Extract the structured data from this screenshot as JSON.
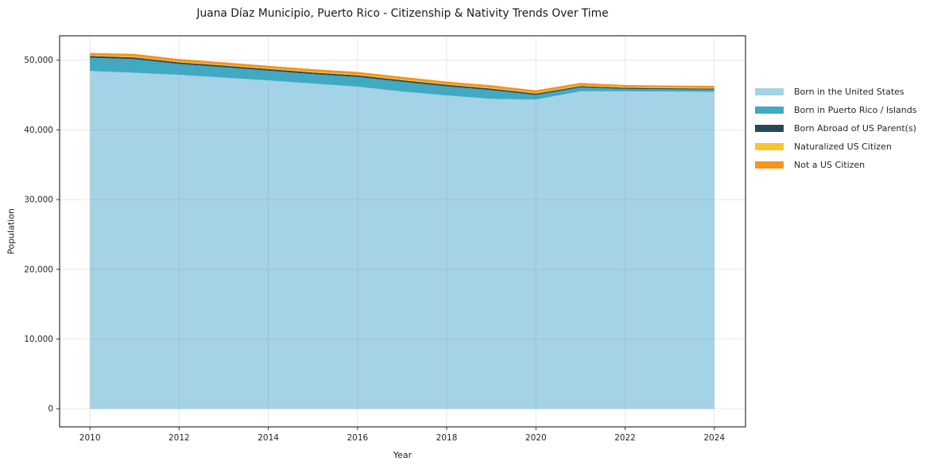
{
  "window": {
    "title": "Juana Díaz Municipio, Puerto Rico - Citizenship & Nativity Trends Over Time"
  },
  "chart_data": {
    "type": "area",
    "stacked": true,
    "title": "Juana Díaz Municipio, Puerto Rico - Citizenship & Nativity Trends Over Time",
    "xlabel": "Year",
    "ylabel": "Population",
    "x": [
      2010,
      2011,
      2012,
      2013,
      2014,
      2015,
      2016,
      2017,
      2018,
      2019,
      2020,
      2021,
      2022,
      2023,
      2024
    ],
    "series": [
      {
        "name": "Born in the United States",
        "color": "#a4d2e7",
        "values": [
          48450,
          48200,
          47900,
          47500,
          47100,
          46650,
          46200,
          45500,
          44950,
          44450,
          44350,
          45550,
          45530,
          45500,
          45450
        ]
      },
      {
        "name": "Born in Puerto Rico / Islands",
        "color": "#41a9c2",
        "values": [
          1900,
          1950,
          1550,
          1500,
          1400,
          1350,
          1400,
          1400,
          1300,
          1250,
          650,
          550,
          350,
          330,
          320
        ]
      },
      {
        "name": "Born Abroad of US Parent(s)",
        "color": "#27495a",
        "values": [
          250,
          240,
          230,
          230,
          230,
          230,
          230,
          230,
          220,
          220,
          200,
          180,
          160,
          150,
          150
        ]
      },
      {
        "name": "Naturalized US Citizen",
        "color": "#fcc22e",
        "values": [
          100,
          110,
          100,
          110,
          110,
          120,
          120,
          120,
          110,
          120,
          120,
          110,
          100,
          100,
          100
        ]
      },
      {
        "name": "Not a US Citizen",
        "color": "#f5941f",
        "values": [
          350,
          400,
          380,
          360,
          360,
          360,
          360,
          360,
          350,
          360,
          350,
          350,
          300,
          280,
          300
        ]
      }
    ],
    "x_ticks": [
      "2010",
      "2012",
      "2014",
      "2016",
      "2018",
      "2020",
      "2022",
      "2024"
    ],
    "x_tick_values": [
      2010,
      2012,
      2014,
      2016,
      2018,
      2020,
      2022,
      2024
    ],
    "y_ticks": [
      "0",
      "10,000",
      "20,000",
      "30,000",
      "40,000",
      "50,000"
    ],
    "y_tick_values": [
      0,
      10000,
      20000,
      30000,
      40000,
      50000
    ],
    "xlim": [
      2009.32,
      2024.7
    ],
    "ylim": [
      -2600,
      53500
    ],
    "grid": true,
    "legend_position": "right",
    "background_color": "#ffffff",
    "spine_color": "#333333",
    "grid_color_rgba": "rgba(130,130,130,0.18)"
  }
}
